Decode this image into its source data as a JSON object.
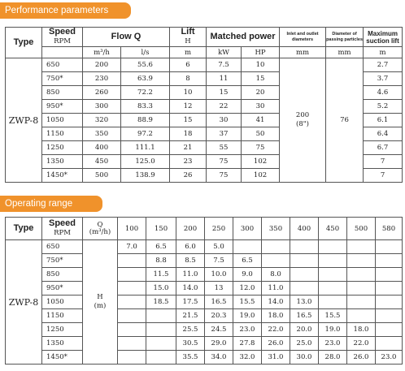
{
  "sections": {
    "performance_title": "Performance parameters",
    "operating_title": "Operating range"
  },
  "perf": {
    "headers": {
      "type": "Type",
      "speed": "Speed",
      "speed_unit": "RPM",
      "flow": "Flow Q",
      "lift": "Lift",
      "lift_sym": "H",
      "power": "Matched power",
      "diam": "Inlet and outlet diameters",
      "particle": "Diameter of passing particles",
      "suction": "Maximum suction lift"
    },
    "units": [
      "m³/h",
      "l/s",
      "m",
      "kW",
      "HP",
      "mm",
      "mm",
      "m"
    ],
    "type_value": "ZWP-8",
    "diam_value": "200",
    "diam_inch": "(8\")",
    "particle_value": "76",
    "rows": [
      {
        "speed": "650",
        "flow_m3h": "200",
        "flow_ls": "55.6",
        "lift": "6",
        "kw": "7.5",
        "hp": "10",
        "suction": "2.7"
      },
      {
        "speed": "750*",
        "flow_m3h": "230",
        "flow_ls": "63.9",
        "lift": "8",
        "kw": "11",
        "hp": "15",
        "suction": "3.7"
      },
      {
        "speed": "850",
        "flow_m3h": "260",
        "flow_ls": "72.2",
        "lift": "10",
        "kw": "15",
        "hp": "20",
        "suction": "4.6"
      },
      {
        "speed": "950*",
        "flow_m3h": "300",
        "flow_ls": "83.3",
        "lift": "12",
        "kw": "22",
        "hp": "30",
        "suction": "5.2"
      },
      {
        "speed": "1050",
        "flow_m3h": "320",
        "flow_ls": "88.9",
        "lift": "15",
        "kw": "30",
        "hp": "41",
        "suction": "6.1"
      },
      {
        "speed": "1150",
        "flow_m3h": "350",
        "flow_ls": "97.2",
        "lift": "18",
        "kw": "37",
        "hp": "50",
        "suction": "6.4"
      },
      {
        "speed": "1250",
        "flow_m3h": "400",
        "flow_ls": "111.1",
        "lift": "21",
        "kw": "55",
        "hp": "75",
        "suction": "6.7"
      },
      {
        "speed": "1350",
        "flow_m3h": "450",
        "flow_ls": "125.0",
        "lift": "23",
        "kw": "75",
        "hp": "102",
        "suction": "7"
      },
      {
        "speed": "1450*",
        "flow_m3h": "500",
        "flow_ls": "138.9",
        "lift": "26",
        "kw": "75",
        "hp": "102",
        "suction": "7"
      }
    ]
  },
  "range": {
    "headers": {
      "type": "Type",
      "speed": "Speed",
      "speed_unit": "RPM",
      "q": "Q",
      "q_unit": "(m³/h)"
    },
    "type_value": "ZWP-8",
    "h_label": "H",
    "h_unit": "(m)",
    "flows": [
      "100",
      "150",
      "200",
      "250",
      "300",
      "350",
      "400",
      "450",
      "500",
      "580"
    ],
    "rows": [
      {
        "speed": "650",
        "values": [
          "7.0",
          "6.5",
          "6.0",
          "5.0",
          "",
          "",
          "",
          "",
          "",
          ""
        ]
      },
      {
        "speed": "750*",
        "values": [
          "",
          "8.8",
          "8.5",
          "7.5",
          "6.5",
          "",
          "",
          "",
          "",
          ""
        ]
      },
      {
        "speed": "850",
        "values": [
          "",
          "11.5",
          "11.0",
          "10.0",
          "9.0",
          "8.0",
          "",
          "",
          "",
          ""
        ]
      },
      {
        "speed": "950*",
        "values": [
          "",
          "15.0",
          "14.0",
          "13",
          "12.0",
          "11.0",
          "",
          "",
          "",
          ""
        ]
      },
      {
        "speed": "1050",
        "values": [
          "",
          "18.5",
          "17.5",
          "16.5",
          "15.5",
          "14.0",
          "13.0",
          "",
          "",
          ""
        ]
      },
      {
        "speed": "1150",
        "values": [
          "",
          "",
          "21.5",
          "20.3",
          "19.0",
          "18.0",
          "16.5",
          "15.5",
          "",
          ""
        ]
      },
      {
        "speed": "1250",
        "values": [
          "",
          "",
          "25.5",
          "24.5",
          "23.0",
          "22.0",
          "20.0",
          "19.0",
          "18.0",
          ""
        ]
      },
      {
        "speed": "1350",
        "values": [
          "",
          "",
          "30.5",
          "29.0",
          "27.8",
          "26.0",
          "25.0",
          "23.0",
          "22.0",
          ""
        ]
      },
      {
        "speed": "1450*",
        "values": [
          "",
          "",
          "35.5",
          "34.0",
          "32.0",
          "31.0",
          "30.0",
          "28.0",
          "26.0",
          "23.0"
        ]
      }
    ]
  }
}
